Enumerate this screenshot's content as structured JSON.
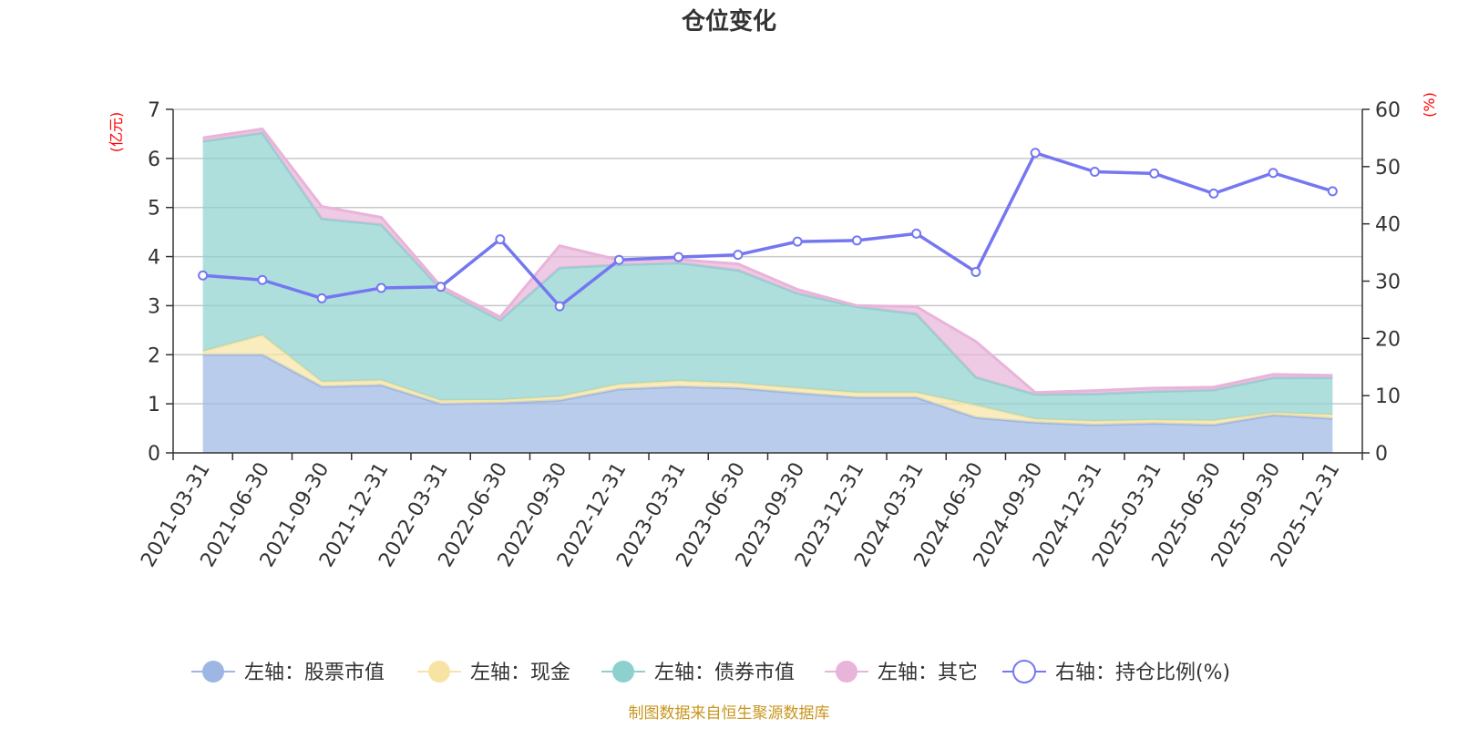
{
  "chart_data": {
    "type": "area",
    "title": "仓位变化",
    "left_axis_unit": "(亿元)",
    "right_axis_unit": "(%)",
    "left_ylim": [
      0,
      7
    ],
    "right_ylim": [
      0,
      60
    ],
    "left_ticks": [
      0,
      1,
      2,
      3,
      4,
      5,
      6,
      7
    ],
    "right_ticks": [
      0,
      10,
      20,
      30,
      40,
      50,
      60
    ],
    "categories": [
      "2021-03-31",
      "2021-06-30",
      "2021-09-30",
      "2021-12-31",
      "2022-03-31",
      "2022-06-30",
      "2022-09-30",
      "2022-12-31",
      "2023-03-31",
      "2023-06-30",
      "2023-09-30",
      "2023-12-31",
      "2024-03-31",
      "2024-06-30",
      "2024-09-30",
      "2024-12-31",
      "2025-03-31",
      "2025-06-30",
      "2025-09-30",
      "2025-12-31"
    ],
    "stacked_series": [
      {
        "name": "左轴：股票市值",
        "color": "#9db6e3",
        "values": [
          2.0,
          2.0,
          1.35,
          1.38,
          1.0,
          1.02,
          1.07,
          1.3,
          1.35,
          1.32,
          1.22,
          1.13,
          1.13,
          0.72,
          0.62,
          0.57,
          0.6,
          0.57,
          0.77,
          0.7
        ]
      },
      {
        "name": "左轴：现金",
        "color": "#f7e4a4",
        "values": [
          0.07,
          0.4,
          0.1,
          0.1,
          0.07,
          0.06,
          0.08,
          0.1,
          0.12,
          0.1,
          0.1,
          0.1,
          0.1,
          0.25,
          0.07,
          0.08,
          0.07,
          0.09,
          0.05,
          0.08
        ]
      },
      {
        "name": "左轴：债券市值",
        "color": "#8dd1cf",
        "values": [
          4.28,
          4.12,
          3.32,
          3.17,
          2.27,
          1.62,
          2.62,
          2.43,
          2.4,
          2.3,
          1.93,
          1.75,
          1.6,
          0.57,
          0.5,
          0.55,
          0.58,
          0.62,
          0.71,
          0.75
        ]
      },
      {
        "name": "左轴：其它",
        "color": "#e8b4d9",
        "values": [
          0.07,
          0.08,
          0.25,
          0.15,
          0.06,
          0.07,
          0.45,
          0.1,
          0.07,
          0.13,
          0.08,
          0.02,
          0.15,
          0.73,
          0.04,
          0.07,
          0.07,
          0.06,
          0.07,
          0.05
        ]
      }
    ],
    "line_series": {
      "name": "右轴：持仓比例(%)",
      "color": "#7477f0",
      "values": [
        31.0,
        30.2,
        27.0,
        28.8,
        29.0,
        37.3,
        25.6,
        33.7,
        34.2,
        34.6,
        36.9,
        37.1,
        38.3,
        31.6,
        52.4,
        49.1,
        48.8,
        45.3,
        48.9,
        45.7
      ]
    }
  },
  "source_note": "制图数据来自恒生聚源数据库"
}
